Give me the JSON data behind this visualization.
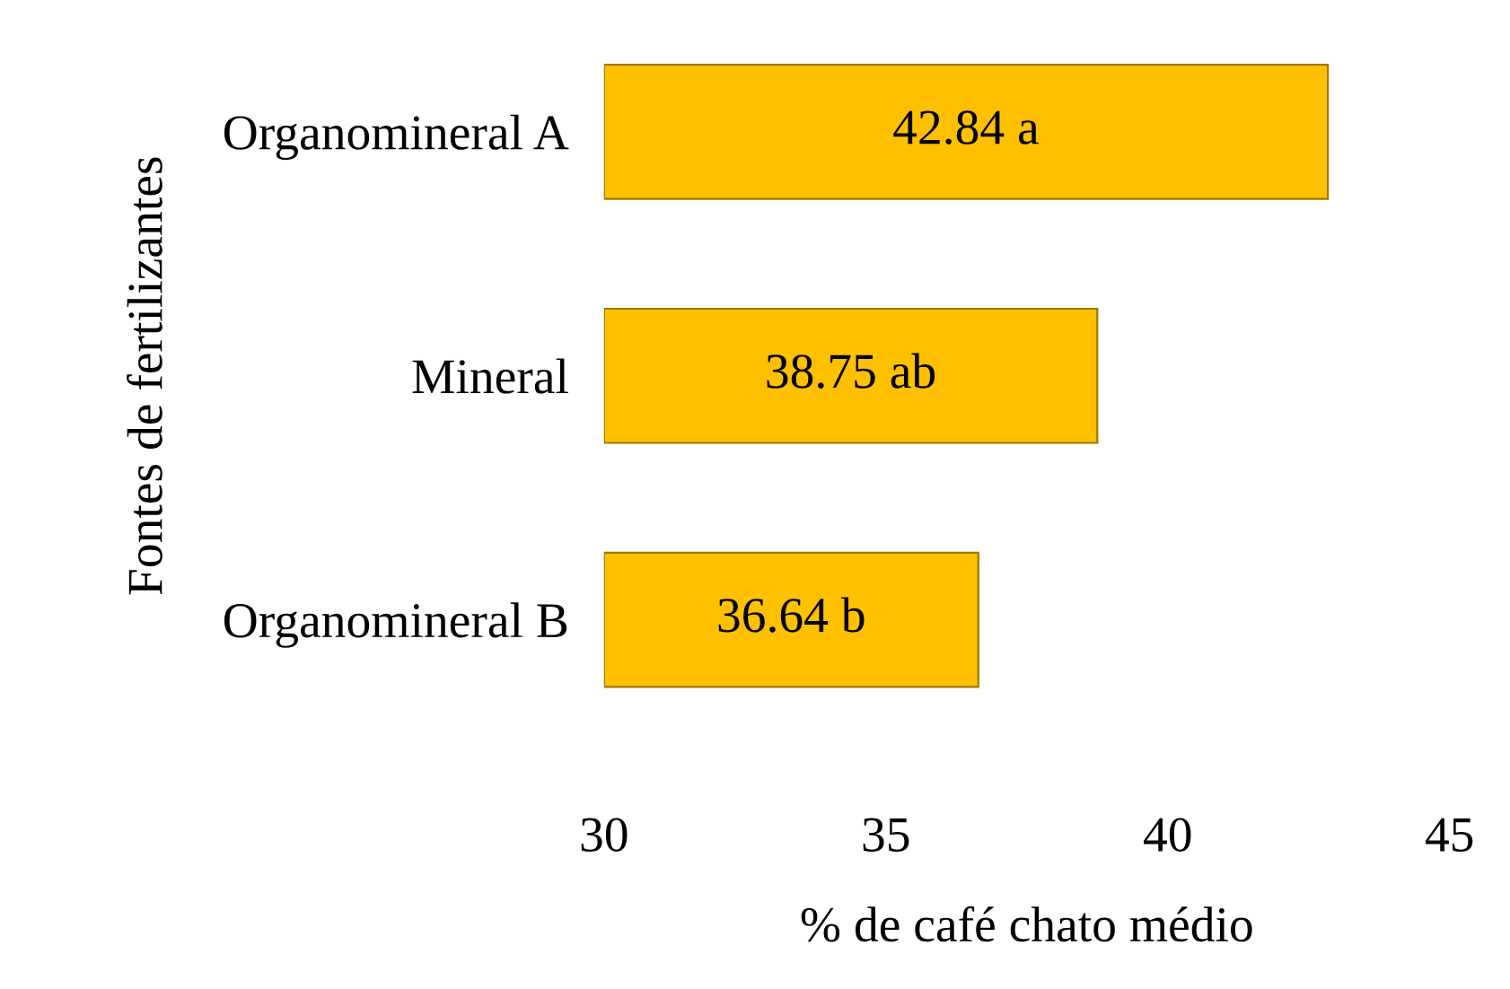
{
  "chart_data": {
    "type": "bar",
    "orientation": "horizontal",
    "categories": [
      "Organomineral A",
      "Mineral",
      "Organomineral B"
    ],
    "values": [
      42.84,
      38.75,
      36.64
    ],
    "value_labels": [
      "42.84 a",
      "38.75 ab",
      "36.64 b"
    ],
    "color": "#ffc000",
    "xlim": [
      30,
      45
    ],
    "xticks": [
      30,
      35,
      40,
      45
    ],
    "xlabel": "% de café chato médio",
    "ylabel": "Fontes de fertilizantes",
    "grid": false
  }
}
